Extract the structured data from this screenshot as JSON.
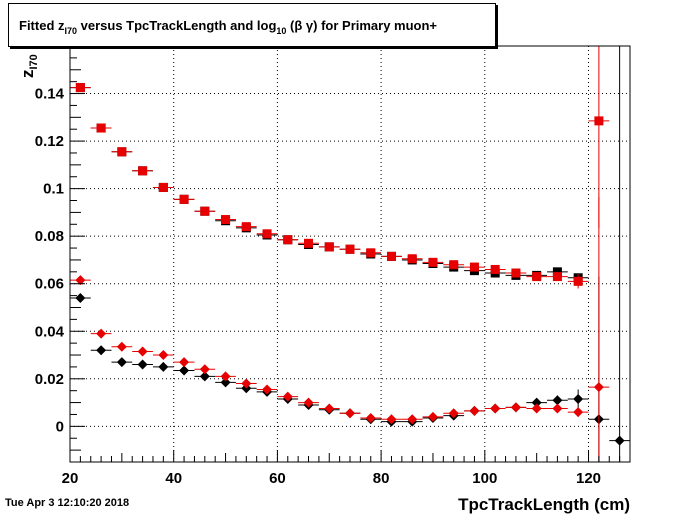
{
  "timestamp": "Tue Apr  3 12:10:20 2018",
  "title": {
    "prefix": "Fitted  z",
    "sub1": "I70",
    "middle": "  versus TpcTrackLength and log",
    "sub2": "10",
    "suffix": " (β γ) for Primary muon+"
  },
  "chart_data": {
    "type": "scatter",
    "xlabel": "TpcTrackLength (cm)",
    "ylabel_main": "z",
    "ylabel_sub": "I70",
    "xlim": [
      20,
      128
    ],
    "ylim": [
      -0.015,
      0.16
    ],
    "grid": true,
    "x_ticks": [
      20,
      40,
      60,
      80,
      100,
      120
    ],
    "x_tick_labels": [
      "20",
      "40",
      "60",
      "80",
      "100",
      "120"
    ],
    "y_ticks": [
      0,
      0.02,
      0.04,
      0.06,
      0.08,
      0.1,
      0.12,
      0.14
    ],
    "y_tick_labels": [
      "0",
      "0.02",
      "0.04",
      "0.06",
      "0.08",
      "0.1",
      "0.12",
      "0.14"
    ],
    "series": [
      {
        "marker": "square",
        "color": "#000000",
        "x": [
          22,
          26,
          30,
          34,
          38,
          42,
          46,
          50,
          54,
          58,
          62,
          66,
          70,
          74,
          78,
          82,
          86,
          90,
          94,
          98,
          102,
          106,
          110,
          114,
          118
        ],
        "y": [
          0.1425,
          0.1255,
          0.1155,
          0.1075,
          0.1005,
          0.0955,
          0.0905,
          0.0865,
          0.0835,
          0.0805,
          0.0785,
          0.0765,
          0.0755,
          0.0745,
          0.0725,
          0.0715,
          0.07,
          0.0685,
          0.067,
          0.0655,
          0.0645,
          0.0635,
          0.0635,
          0.065,
          0.0625
        ],
        "yerr": [
          0,
          0,
          0,
          0,
          0,
          0,
          0,
          0,
          0,
          0,
          0,
          0,
          0,
          0,
          0,
          0,
          0,
          0,
          0,
          0,
          0,
          0,
          0,
          0,
          0
        ]
      },
      {
        "marker": "square",
        "color": "#e60000",
        "x": [
          22,
          26,
          30,
          34,
          38,
          42,
          46,
          50,
          54,
          58,
          62,
          66,
          70,
          74,
          78,
          82,
          86,
          90,
          94,
          98,
          102,
          106,
          110,
          114,
          118,
          122
        ],
        "y": [
          0.1425,
          0.1255,
          0.1155,
          0.1075,
          0.1005,
          0.0955,
          0.0905,
          0.087,
          0.084,
          0.081,
          0.0785,
          0.077,
          0.0755,
          0.0745,
          0.073,
          0.0715,
          0.0705,
          0.069,
          0.068,
          0.067,
          0.066,
          0.0645,
          0.063,
          0.063,
          0.061,
          0.1285
        ],
        "yerr": [
          0,
          0,
          0,
          0,
          0,
          0,
          0,
          0,
          0,
          0,
          0,
          0,
          0,
          0,
          0,
          0,
          0,
          0,
          0,
          0,
          0,
          0,
          0,
          0,
          0.003,
          0.045
        ]
      },
      {
        "marker": "diamond",
        "color": "#000000",
        "x": [
          22,
          26,
          30,
          34,
          38,
          42,
          46,
          50,
          54,
          58,
          62,
          66,
          70,
          74,
          78,
          82,
          86,
          90,
          94,
          98,
          102,
          106,
          110,
          114,
          118,
          122,
          126
        ],
        "y": [
          0.054,
          0.032,
          0.027,
          0.026,
          0.025,
          0.0235,
          0.021,
          0.0185,
          0.016,
          0.0145,
          0.0115,
          0.009,
          0.007,
          0.0055,
          0.003,
          0.002,
          0.002,
          0.0035,
          0.0045,
          0.0065,
          0.0075,
          0.008,
          0.01,
          0.011,
          0.0115,
          0.003,
          -0.006
        ],
        "yerr": [
          0,
          0,
          0,
          0,
          0,
          0,
          0,
          0,
          0,
          0,
          0,
          0,
          0,
          0,
          0,
          0,
          0,
          0,
          0,
          0,
          0,
          0,
          0,
          0.002,
          0.004,
          0.06,
          0.2
        ]
      },
      {
        "marker": "diamond",
        "color": "#e60000",
        "x": [
          22,
          26,
          30,
          34,
          38,
          42,
          46,
          50,
          54,
          58,
          62,
          66,
          70,
          74,
          78,
          82,
          86,
          90,
          94,
          98,
          102,
          106,
          110,
          114,
          118,
          122
        ],
        "y": [
          0.0615,
          0.039,
          0.0335,
          0.0315,
          0.03,
          0.027,
          0.024,
          0.021,
          0.018,
          0.0155,
          0.0125,
          0.01,
          0.0075,
          0.0055,
          0.0035,
          0.003,
          0.003,
          0.004,
          0.0055,
          0.0065,
          0.0075,
          0.008,
          0.0075,
          0.0075,
          0.006,
          0.0165
        ],
        "yerr": [
          0,
          0,
          0,
          0,
          0,
          0,
          0,
          0,
          0,
          0,
          0,
          0,
          0,
          0,
          0,
          0,
          0,
          0,
          0,
          0,
          0,
          0,
          0,
          0,
          0.002,
          0.08
        ]
      }
    ]
  }
}
